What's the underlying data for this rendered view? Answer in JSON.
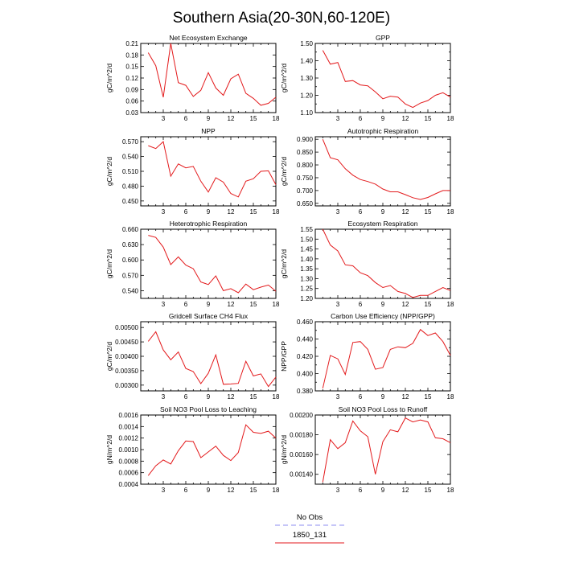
{
  "title": "Southern Asia(20-30N,60-120E)",
  "colors": {
    "model_line": "#e31a1c",
    "obs_line": "#8c8cf0",
    "axis": "#000000"
  },
  "legend": {
    "obs_label": "No Obs",
    "model_label": "1850_131"
  },
  "chart_data": [
    {
      "type": "line",
      "title": "Net Ecosystem Exchange",
      "ylabel": "gC/m^2/d",
      "xlim": [
        0,
        18
      ],
      "ylim": [
        0.03,
        0.21
      ],
      "xticks": [
        3,
        6,
        9,
        12,
        15,
        18
      ],
      "xtick_labels": [
        "3",
        "6",
        "9",
        "12",
        "15",
        "18"
      ],
      "yticks": [
        0.03,
        0.06,
        0.09,
        0.12,
        0.15,
        0.18,
        0.21
      ],
      "ytick_labels": [
        "0.03",
        "0.06",
        "0.09",
        "0.12",
        "0.15",
        "0.18",
        "0.21"
      ],
      "series": [
        {
          "x": [
            1,
            2,
            3,
            4,
            5,
            6,
            7,
            8,
            9,
            10,
            11,
            12,
            13,
            14,
            15,
            16,
            17,
            18
          ],
          "y": [
            0.186,
            0.152,
            0.07,
            0.21,
            0.108,
            0.101,
            0.072,
            0.088,
            0.134,
            0.094,
            0.075,
            0.118,
            0.13,
            0.08,
            0.067,
            0.049,
            0.054,
            0.07
          ]
        }
      ]
    },
    {
      "type": "line",
      "title": "GPP",
      "ylabel": "gC/m^2/d",
      "xlim": [
        0,
        18
      ],
      "ylim": [
        1.1,
        1.5
      ],
      "xticks": [
        3,
        6,
        9,
        12,
        15,
        18
      ],
      "xtick_labels": [
        "3",
        "6",
        "9",
        "12",
        "15",
        "18"
      ],
      "yticks": [
        1.1,
        1.2,
        1.3,
        1.4,
        1.5
      ],
      "ytick_labels": [
        "1.10",
        "1.20",
        "1.30",
        "1.40",
        "1.50"
      ],
      "minor_yticks": [
        1.15,
        1.25,
        1.35,
        1.45
      ],
      "series": [
        {
          "x": [
            1,
            2,
            3,
            4,
            5,
            6,
            7,
            8,
            9,
            10,
            11,
            12,
            13,
            14,
            15,
            16,
            17,
            18
          ],
          "y": [
            1.46,
            1.38,
            1.39,
            1.28,
            1.285,
            1.26,
            1.255,
            1.22,
            1.18,
            1.195,
            1.19,
            1.15,
            1.13,
            1.155,
            1.17,
            1.2,
            1.215,
            1.19
          ]
        }
      ]
    },
    {
      "type": "line",
      "title": "NPP",
      "ylabel": "gC/m^2/d",
      "xlim": [
        0,
        18
      ],
      "ylim": [
        0.44,
        0.58
      ],
      "xticks": [
        3,
        6,
        9,
        12,
        15,
        18
      ],
      "xtick_labels": [
        "3",
        "6",
        "9",
        "12",
        "15",
        "18"
      ],
      "yticks": [
        0.45,
        0.48,
        0.51,
        0.54,
        0.57
      ],
      "ytick_labels": [
        "0.450",
        "0.480",
        "0.510",
        "0.540",
        "0.570"
      ],
      "series": [
        {
          "x": [
            1,
            2,
            3,
            4,
            5,
            6,
            7,
            8,
            9,
            10,
            11,
            12,
            13,
            14,
            15,
            16,
            17,
            18
          ],
          "y": [
            0.562,
            0.556,
            0.57,
            0.5,
            0.525,
            0.517,
            0.52,
            0.49,
            0.468,
            0.497,
            0.488,
            0.465,
            0.458,
            0.49,
            0.495,
            0.51,
            0.511,
            0.483
          ]
        }
      ]
    },
    {
      "type": "line",
      "title": "Autotrophic Respiration",
      "ylabel": "gC/m^2/d",
      "xlim": [
        0,
        18
      ],
      "ylim": [
        0.64,
        0.91
      ],
      "xticks": [
        3,
        6,
        9,
        12,
        15,
        18
      ],
      "xtick_labels": [
        "3",
        "6",
        "9",
        "12",
        "15",
        "18"
      ],
      "yticks": [
        0.65,
        0.7,
        0.75,
        0.8,
        0.85,
        0.9
      ],
      "ytick_labels": [
        "0.650",
        "0.700",
        "0.750",
        "0.800",
        "0.850",
        "0.900"
      ],
      "series": [
        {
          "x": [
            1,
            2,
            3,
            4,
            5,
            6,
            7,
            8,
            9,
            10,
            11,
            12,
            13,
            14,
            15,
            16,
            17,
            18
          ],
          "y": [
            0.9,
            0.828,
            0.82,
            0.785,
            0.76,
            0.743,
            0.735,
            0.725,
            0.706,
            0.695,
            0.695,
            0.684,
            0.672,
            0.665,
            0.673,
            0.687,
            0.7,
            0.7
          ]
        }
      ]
    },
    {
      "type": "line",
      "title": "Heterotrophic Respiration",
      "ylabel": "gC/m^2/d",
      "xlim": [
        0,
        18
      ],
      "ylim": [
        0.525,
        0.66
      ],
      "xticks": [
        3,
        6,
        9,
        12,
        15,
        18
      ],
      "xtick_labels": [
        "3",
        "6",
        "9",
        "12",
        "15",
        "18"
      ],
      "yticks": [
        0.54,
        0.57,
        0.6,
        0.63,
        0.66
      ],
      "ytick_labels": [
        "0.540",
        "0.570",
        "0.600",
        "0.630",
        "0.660"
      ],
      "series": [
        {
          "x": [
            1,
            2,
            3,
            4,
            5,
            6,
            7,
            8,
            9,
            10,
            11,
            12,
            13,
            14,
            15,
            16,
            17,
            18
          ],
          "y": [
            0.648,
            0.644,
            0.625,
            0.591,
            0.606,
            0.59,
            0.583,
            0.557,
            0.552,
            0.569,
            0.54,
            0.544,
            0.536,
            0.553,
            0.542,
            0.547,
            0.551,
            0.539
          ]
        }
      ]
    },
    {
      "type": "line",
      "title": "Ecosystem Respiration",
      "ylabel": "gC/m^2/d",
      "xlim": [
        0,
        18
      ],
      "ylim": [
        1.2,
        1.55
      ],
      "xticks": [
        3,
        6,
        9,
        12,
        15,
        18
      ],
      "xtick_labels": [
        "3",
        "6",
        "9",
        "12",
        "15",
        "18"
      ],
      "yticks": [
        1.2,
        1.25,
        1.3,
        1.35,
        1.4,
        1.45,
        1.5,
        1.55
      ],
      "ytick_labels": [
        "1.20",
        "1.25",
        "1.30",
        "1.35",
        "1.40",
        "1.45",
        "1.50",
        "1.55"
      ],
      "series": [
        {
          "x": [
            1,
            2,
            3,
            4,
            5,
            6,
            7,
            8,
            9,
            10,
            11,
            12,
            13,
            14,
            15,
            16,
            17,
            18
          ],
          "y": [
            1.55,
            1.47,
            1.44,
            1.37,
            1.365,
            1.33,
            1.315,
            1.28,
            1.255,
            1.265,
            1.235,
            1.225,
            1.205,
            1.215,
            1.215,
            1.235,
            1.255,
            1.24
          ]
        }
      ]
    },
    {
      "type": "line",
      "title": "Gridcell Surface CH4 Flux",
      "ylabel": "gC/m^2/d",
      "xlim": [
        0,
        18
      ],
      "ylim": [
        0.0028,
        0.0052
      ],
      "xticks": [
        3,
        6,
        9,
        12,
        15,
        18
      ],
      "xtick_labels": [
        "3",
        "6",
        "9",
        "12",
        "15",
        "18"
      ],
      "yticks": [
        0.003,
        0.0035,
        0.004,
        0.0045,
        0.005
      ],
      "ytick_labels": [
        "0.00300",
        "0.00350",
        "0.00400",
        "0.00450",
        "0.00500"
      ],
      "series": [
        {
          "x": [
            1,
            2,
            3,
            4,
            5,
            6,
            7,
            8,
            9,
            10,
            11,
            12,
            13,
            14,
            15,
            16,
            17,
            18
          ],
          "y": [
            0.00452,
            0.00485,
            0.00422,
            0.00388,
            0.00415,
            0.00358,
            0.00347,
            0.00305,
            0.00341,
            0.00405,
            0.00303,
            0.00304,
            0.00306,
            0.00383,
            0.00332,
            0.00339,
            0.00295,
            0.00328
          ]
        }
      ]
    },
    {
      "type": "line",
      "title": "Carbon Use Efficiency (NPP/GPP)",
      "ylabel": "NPP/GPP",
      "xlim": [
        0,
        18
      ],
      "ylim": [
        0.38,
        0.46
      ],
      "xticks": [
        3,
        6,
        9,
        12,
        15,
        18
      ],
      "xtick_labels": [
        "3",
        "6",
        "9",
        "12",
        "15",
        "18"
      ],
      "yticks": [
        0.38,
        0.4,
        0.42,
        0.44,
        0.46
      ],
      "ytick_labels": [
        "0.380",
        "0.400",
        "0.420",
        "0.440",
        "0.460"
      ],
      "minor_yticks": [
        0.39,
        0.41,
        0.43,
        0.45
      ],
      "series": [
        {
          "x": [
            1,
            2,
            3,
            4,
            5,
            6,
            7,
            8,
            9,
            10,
            11,
            12,
            13,
            14,
            15,
            16,
            17,
            18
          ],
          "y": [
            0.383,
            0.421,
            0.417,
            0.399,
            0.436,
            0.437,
            0.428,
            0.405,
            0.407,
            0.428,
            0.431,
            0.43,
            0.435,
            0.451,
            0.444,
            0.447,
            0.437,
            0.421
          ]
        }
      ]
    },
    {
      "type": "line",
      "title": "Soil NO3 Pool Loss to Leaching",
      "ylabel": "gN/m^2/d",
      "xlim": [
        0,
        18
      ],
      "ylim": [
        0.0004,
        0.0016
      ],
      "xticks": [
        3,
        6,
        9,
        12,
        15,
        18
      ],
      "xtick_labels": [
        "3",
        "6",
        "9",
        "12",
        "15",
        "18"
      ],
      "yticks": [
        0.0004,
        0.0006,
        0.0008,
        0.001,
        0.0012,
        0.0014,
        0.0016
      ],
      "ytick_labels": [
        "0.0004",
        "0.0006",
        "0.0008",
        "0.0010",
        "0.0012",
        "0.0014",
        "0.0016"
      ],
      "series": [
        {
          "x": [
            1,
            2,
            3,
            4,
            5,
            6,
            7,
            8,
            9,
            10,
            11,
            12,
            13,
            14,
            15,
            16,
            17,
            18
          ],
          "y": [
            0.00055,
            0.00072,
            0.00082,
            0.00075,
            0.00098,
            0.00115,
            0.00114,
            0.00086,
            0.00096,
            0.00106,
            0.0009,
            0.00081,
            0.00095,
            0.00143,
            0.0013,
            0.00128,
            0.00132,
            0.0012
          ]
        }
      ]
    },
    {
      "type": "line",
      "title": "Soil NO3 Pool Loss to Runoff",
      "ylabel": "gN/m^2/d",
      "xlim": [
        0,
        18
      ],
      "ylim": [
        0.0013,
        0.002
      ],
      "xticks": [
        3,
        6,
        9,
        12,
        15,
        18
      ],
      "xtick_labels": [
        "3",
        "6",
        "9",
        "12",
        "15",
        "18"
      ],
      "yticks": [
        0.0014,
        0.0016,
        0.0018,
        0.002
      ],
      "ytick_labels": [
        "0.00140",
        "0.00160",
        "0.00180",
        "0.00200"
      ],
      "series": [
        {
          "x": [
            1,
            2,
            3,
            4,
            5,
            6,
            7,
            8,
            9,
            10,
            11,
            12,
            13,
            14,
            15,
            16,
            17,
            18
          ],
          "y": [
            0.00132,
            0.00175,
            0.00166,
            0.00172,
            0.00194,
            0.00184,
            0.00178,
            0.0014,
            0.00173,
            0.00185,
            0.00183,
            0.00197,
            0.00193,
            0.00195,
            0.00193,
            0.00177,
            0.00176,
            0.00172
          ]
        }
      ]
    }
  ]
}
